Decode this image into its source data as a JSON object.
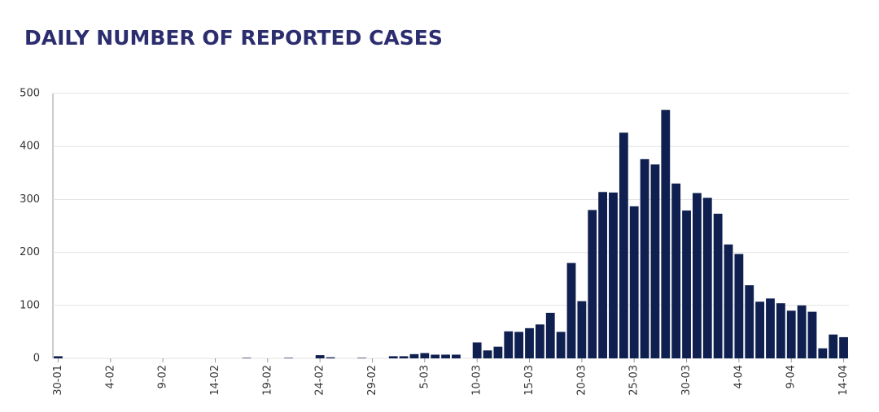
{
  "chart_data": {
    "type": "bar",
    "title": "DAILY NUMBER OF REPORTED CASES",
    "categories": [
      "30-01",
      null,
      null,
      null,
      null,
      "4-02",
      null,
      null,
      null,
      null,
      "9-02",
      null,
      null,
      null,
      null,
      "14-02",
      null,
      null,
      null,
      null,
      "19-02",
      null,
      null,
      null,
      null,
      "24-02",
      null,
      null,
      null,
      null,
      "29-02",
      null,
      null,
      null,
      null,
      "5-03",
      null,
      null,
      null,
      null,
      "10-03",
      null,
      null,
      null,
      null,
      "15-03",
      null,
      null,
      null,
      null,
      "20-03",
      null,
      null,
      null,
      null,
      "25-03",
      null,
      null,
      null,
      null,
      "30-03",
      null,
      null,
      null,
      null,
      "4-04",
      null,
      null,
      null,
      null,
      "9-04",
      null,
      null,
      null,
      null,
      "14-04"
    ],
    "values": [
      4,
      0,
      0,
      0,
      0,
      0,
      0,
      0,
      0,
      0,
      0,
      0,
      0,
      0,
      0,
      0,
      0,
      0,
      1,
      0,
      0,
      0,
      1,
      0,
      0,
      6,
      2,
      0,
      0,
      1,
      0,
      0,
      4,
      4,
      8,
      10,
      7,
      7,
      7,
      0,
      30,
      15,
      22,
      51,
      50,
      57,
      64,
      86,
      50,
      180,
      108,
      280,
      314,
      313,
      426,
      287,
      376,
      366,
      469,
      330,
      279,
      312,
      303,
      273,
      215,
      197,
      138,
      107,
      113,
      104,
      90,
      100,
      88,
      19,
      45,
      40
    ],
    "color": "#0f1f4f",
    "ylim": [
      0,
      500
    ],
    "yticks": [
      0,
      100,
      200,
      300,
      400,
      500
    ],
    "grid": true
  }
}
